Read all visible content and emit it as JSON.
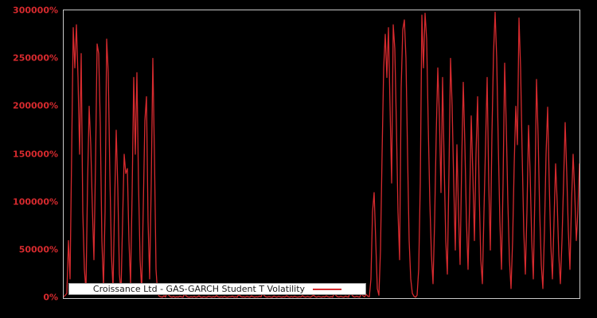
{
  "colors": {
    "background": "#000000",
    "line": "#d62a2e",
    "tick_label": "#d62a2e",
    "plot_border": "#c9c9c9",
    "legend_bg": "#ffffff",
    "legend_border": "#9a9a9a",
    "legend_text": "#1a1a1a"
  },
  "legend": {
    "label": "Croissance Ltd - GAS-GARCH Student T Volatility"
  },
  "chart_data": {
    "type": "line",
    "title": "",
    "xlabel": "",
    "ylabel": "",
    "ylim": [
      0,
      300000
    ],
    "grid": false,
    "legend_position": "bottom-inside-left",
    "yticks": [
      {
        "label": "0%",
        "value": 0
      },
      {
        "label": "50000%",
        "value": 50000
      },
      {
        "label": "100000%",
        "value": 100000
      },
      {
        "label": "150000%",
        "value": 150000
      },
      {
        "label": "200000%",
        "value": 200000
      },
      {
        "label": "250000%",
        "value": 250000
      },
      {
        "label": "300000%",
        "value": 300000
      }
    ],
    "series": [
      {
        "name": "Croissance Ltd - GAS-GARCH Student T Volatility",
        "color": "#d62a2e",
        "unit": "%",
        "values": [
          1500,
          3000,
          5000,
          60000,
          20000,
          150000,
          282000,
          240000,
          285000,
          230000,
          150000,
          255000,
          90000,
          30000,
          8000,
          120000,
          200000,
          160000,
          95000,
          40000,
          140000,
          265000,
          255000,
          180000,
          60000,
          12000,
          90000,
          270000,
          235000,
          130000,
          45000,
          10000,
          100000,
          175000,
          115000,
          25000,
          6000,
          80000,
          150000,
          130000,
          135000,
          60000,
          15000,
          110000,
          230000,
          150000,
          235000,
          120000,
          40000,
          8000,
          95000,
          185000,
          210000,
          80000,
          20000,
          120000,
          250000,
          150000,
          30000,
          5000,
          2000,
          1500,
          1000,
          2500,
          1200,
          8000,
          3000,
          1500,
          1000,
          1800,
          900,
          1400,
          1100,
          2000,
          1300,
          1000,
          5000,
          2200,
          1200,
          900,
          1500,
          1100,
          1800,
          1000,
          1300,
          2400,
          1100,
          900,
          1600,
          1200,
          1000,
          2000,
          1400,
          1000,
          1700,
          1200,
          2600,
          1300,
          1000,
          1500,
          1100,
          1900,
          1200,
          1000,
          1600,
          1300,
          2100,
          1100,
          1400,
          1000,
          4000,
          2000,
          1200,
          1500,
          1000,
          1800,
          1300,
          1100,
          2300,
          1400,
          1000,
          1600,
          1200,
          2000,
          1300,
          6000,
          2500,
          1400,
          1100,
          1700,
          1200,
          1000,
          2200,
          1500,
          1100,
          1900,
          1300,
          1000,
          1600,
          1200,
          2400,
          1400,
          1000,
          1700,
          1100,
          2000,
          1300,
          1000,
          1500,
          1200,
          2600,
          1400,
          1100,
          1800,
          1300,
          1000,
          2100,
          3000,
          1500,
          1100,
          1900,
          1300,
          1000,
          1700,
          1200,
          2300,
          1400,
          1000,
          1600,
          1100,
          6000,
          2800,
          1500,
          1200,
          1900,
          1300,
          1000,
          2200,
          1400,
          1100,
          8000,
          3500,
          1600,
          1200,
          2000,
          1300,
          1000,
          5000,
          2500,
          1400,
          4000,
          2000,
          1500,
          20000,
          90000,
          110000,
          60000,
          10000,
          3000,
          50000,
          150000,
          240000,
          275000,
          230000,
          282000,
          200000,
          120000,
          285000,
          260000,
          180000,
          90000,
          40000,
          220000,
          280000,
          290000,
          250000,
          150000,
          60000,
          20000,
          5000,
          2000,
          1000,
          3000,
          30000,
          120000,
          295000,
          240000,
          297000,
          270000,
          180000,
          100000,
          45000,
          15000,
          80000,
          170000,
          240000,
          190000,
          110000,
          230000,
          140000,
          60000,
          25000,
          130000,
          250000,
          200000,
          120000,
          50000,
          160000,
          90000,
          35000,
          140000,
          225000,
          160000,
          80000,
          30000,
          100000,
          190000,
          130000,
          60000,
          150000,
          210000,
          110000,
          40000,
          15000,
          90000,
          160000,
          230000,
          120000,
          50000,
          170000,
          255000,
          298000,
          250000,
          160000,
          80000,
          30000,
          120000,
          245000,
          180000,
          100000,
          40000,
          10000,
          60000,
          140000,
          200000,
          160000,
          292000,
          240000,
          150000,
          70000,
          25000,
          90000,
          180000,
          130000,
          60000,
          20000,
          110000,
          228000,
          170000,
          90000,
          35000,
          10000,
          70000,
          150000,
          199000,
          120000,
          55000,
          20000,
          80000,
          140000,
          100000,
          45000,
          15000,
          60000,
          120000,
          183000,
          130000,
          70000,
          30000,
          100000,
          150000,
          110000,
          60000,
          90000,
          140000
        ]
      }
    ]
  }
}
